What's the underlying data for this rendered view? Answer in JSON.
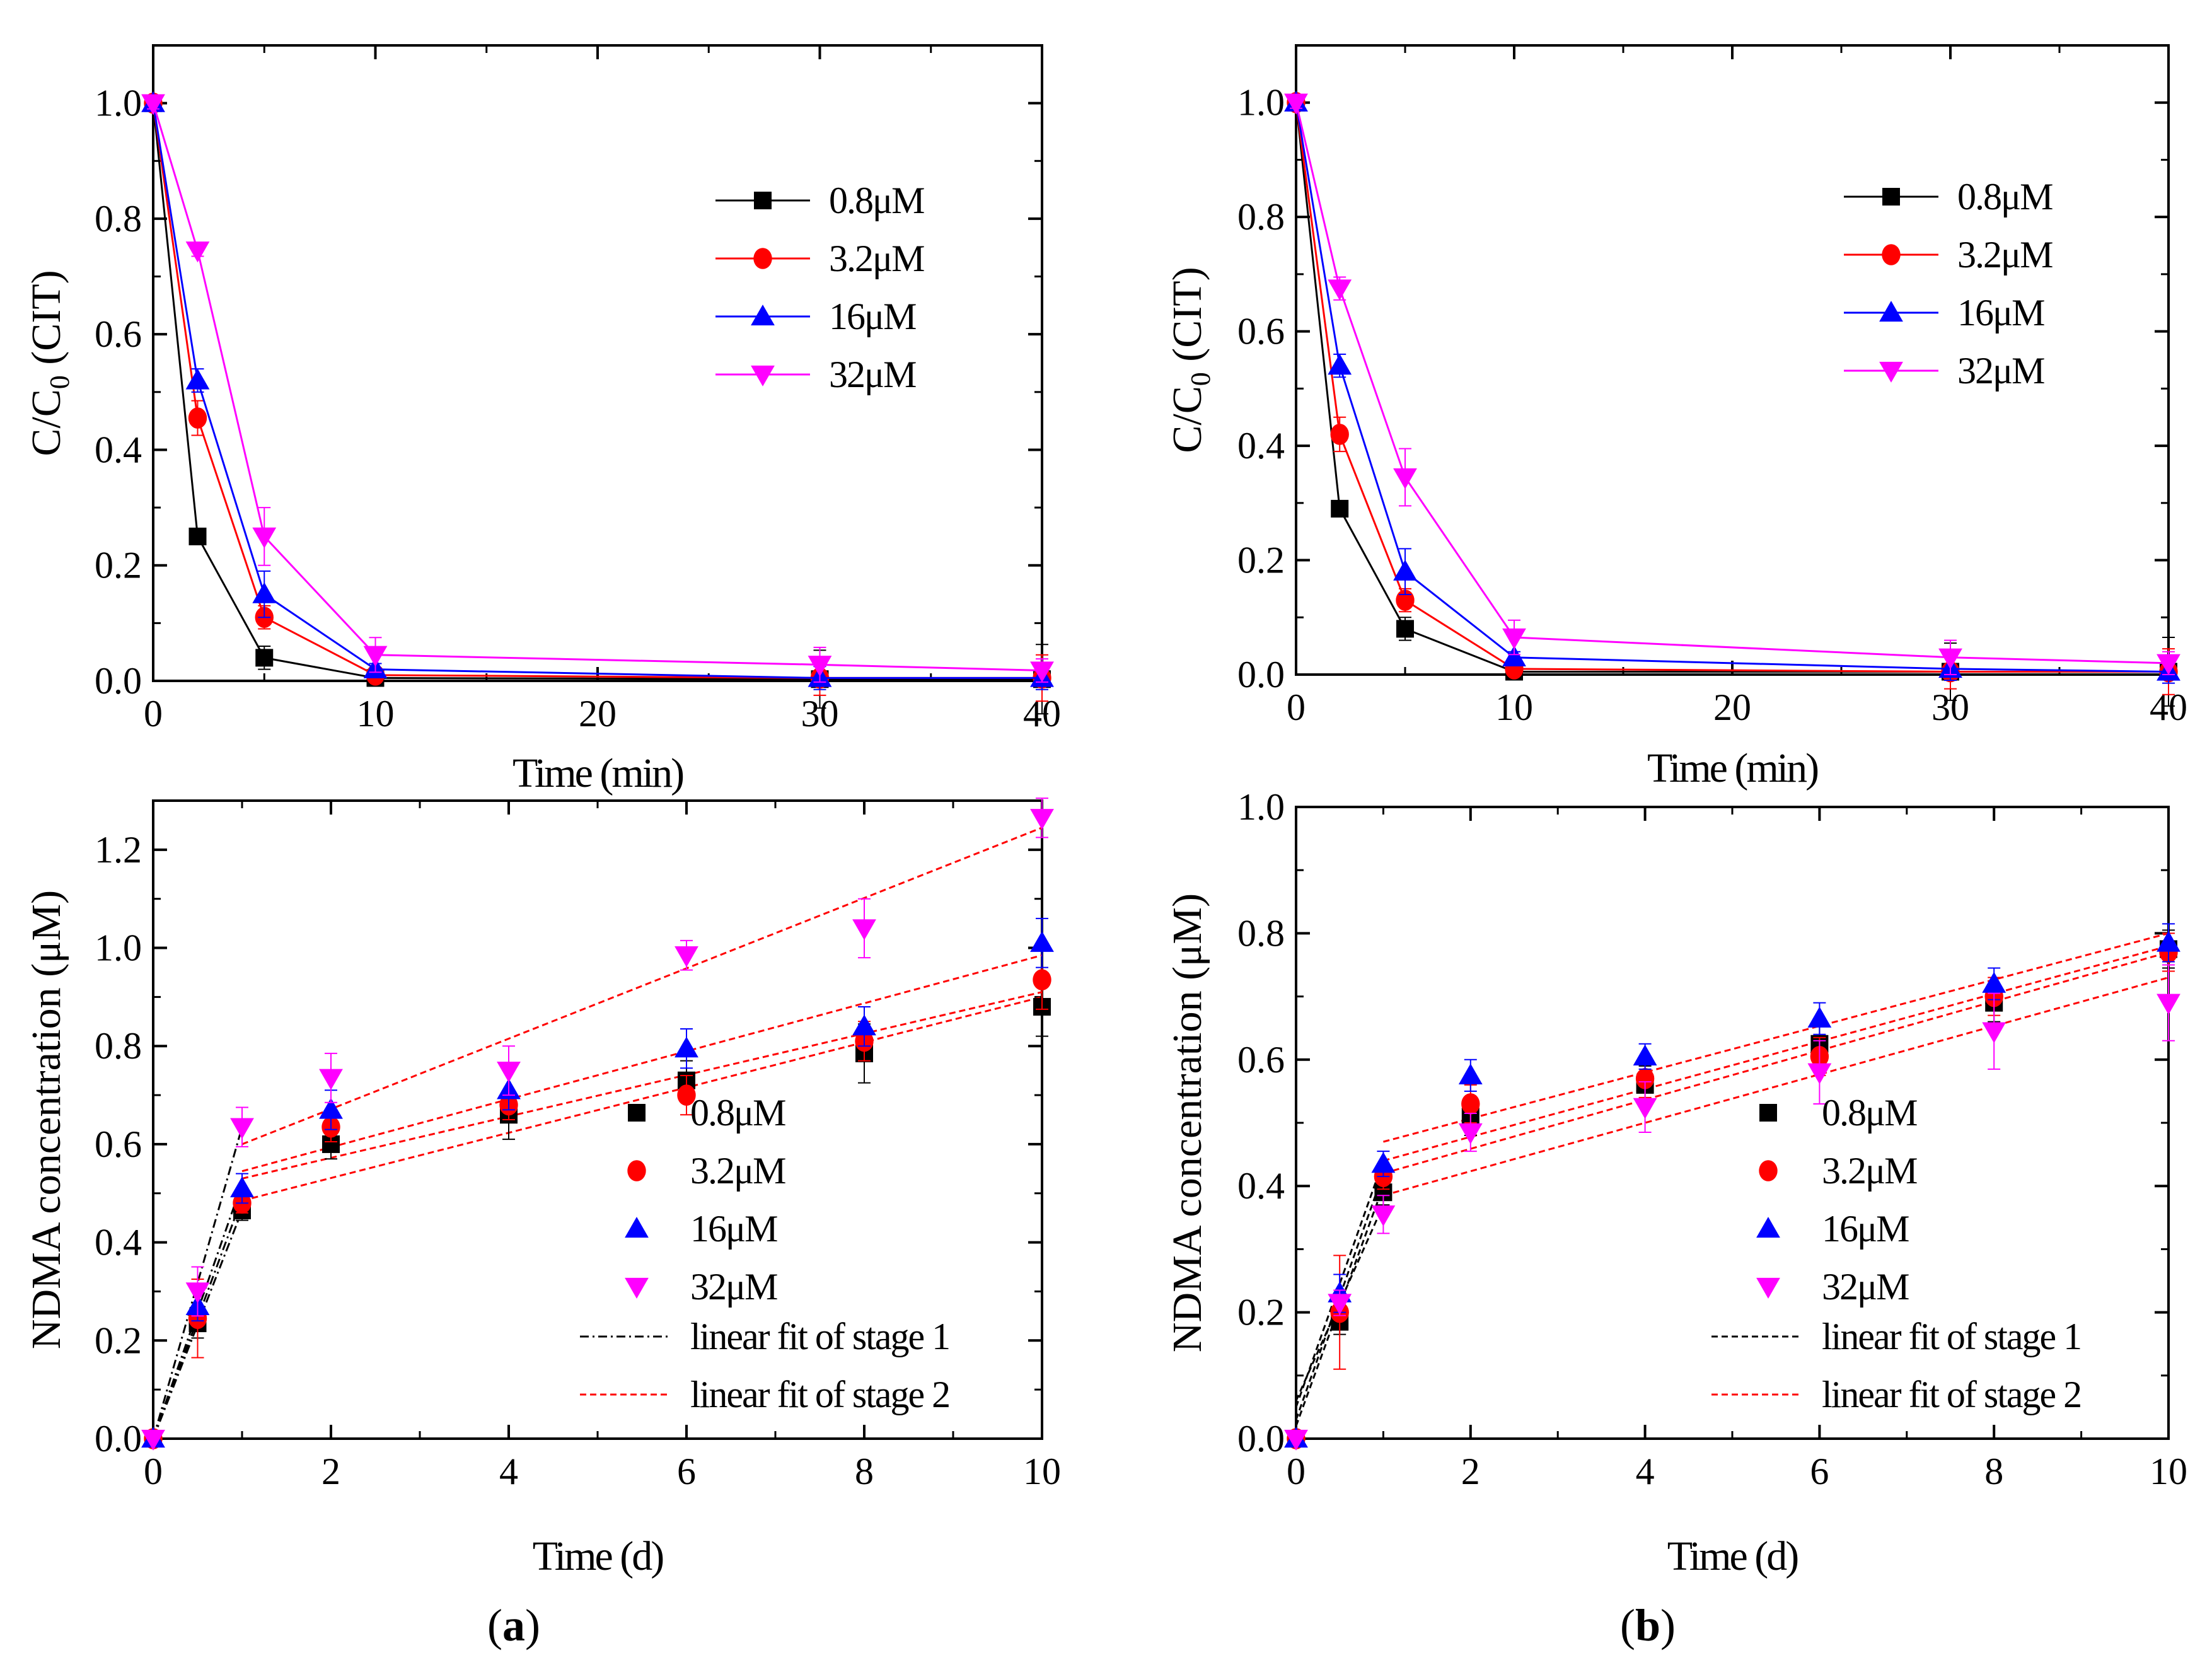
{
  "figure": {
    "panel_labels": [
      {
        "prefix": "(",
        "letter": "a",
        "suffix": ")"
      },
      {
        "prefix": "(",
        "letter": "b",
        "suffix": ")"
      }
    ]
  },
  "series_styles": {
    "0.8μM": {
      "color": "#000000",
      "marker": "square"
    },
    "3.2μM": {
      "color": "#ff0000",
      "marker": "circle"
    },
    "16μM": {
      "color": "#0000ff",
      "marker": "triangle-up"
    },
    "32μM": {
      "color": "#ff00ff",
      "marker": "triangle-down"
    }
  },
  "chart_data": [
    {
      "id": "a-top",
      "type": "line",
      "xlabel": "Time (min)",
      "ylabel_main": "C/C",
      "ylabel_sub": "0",
      "ylabel_tail": " (CIT)",
      "xlim": [
        0,
        40
      ],
      "ylim": [
        0,
        1.1
      ],
      "xticks": [
        0,
        10,
        20,
        30,
        40
      ],
      "xtick_labels": [
        "0",
        "10",
        "20",
        "30",
        "40"
      ],
      "xminor": [
        5,
        15,
        25,
        35
      ],
      "yticks": [
        0,
        0.2,
        0.4,
        0.6,
        0.8,
        1.0
      ],
      "ytick_labels": [
        "0.0",
        "0.2",
        "0.4",
        "0.6",
        "0.8",
        "1.0"
      ],
      "yminor": [
        0.1,
        0.3,
        0.5,
        0.7,
        0.9
      ],
      "x": [
        0,
        2,
        5,
        10,
        30,
        40
      ],
      "series": [
        {
          "name": "0.8μM",
          "values": [
            1.0,
            0.25,
            0.04,
            0.005,
            0.003,
            0.003
          ],
          "errors": [
            0.01,
            0.01,
            0.02,
            0.005,
            0.05,
            0.06
          ]
        },
        {
          "name": "3.2μM",
          "values": [
            1.0,
            0.455,
            0.11,
            0.01,
            0.005,
            0.005
          ],
          "errors": [
            0.01,
            0.03,
            0.02,
            0.01,
            0.03,
            0.04
          ]
        },
        {
          "name": "16μM",
          "values": [
            1.0,
            0.52,
            0.15,
            0.02,
            0.005,
            0.005
          ],
          "errors": [
            0.01,
            0.02,
            0.04,
            0.01,
            0.02,
            0.02
          ]
        },
        {
          "name": "32μM",
          "values": [
            1.0,
            0.745,
            0.25,
            0.045,
            0.028,
            0.018
          ],
          "errors": [
            0.01,
            0.01,
            0.05,
            0.03,
            0.03,
            0.02
          ]
        }
      ],
      "legend": {
        "placement": "top-right",
        "entries": [
          "0.8μM",
          "3.2μM",
          "16μM",
          "32μM"
        ]
      }
    },
    {
      "id": "b-top",
      "type": "line",
      "xlabel": "Time (min)",
      "ylabel_main": "C/C",
      "ylabel_sub": "0",
      "ylabel_tail": " (CIT)",
      "xlim": [
        0,
        40
      ],
      "ylim": [
        0,
        1.1
      ],
      "xticks": [
        0,
        10,
        20,
        30,
        40
      ],
      "xtick_labels": [
        "0",
        "10",
        "20",
        "30",
        "40"
      ],
      "xminor": [
        5,
        15,
        25,
        35
      ],
      "yticks": [
        0,
        0.2,
        0.4,
        0.6,
        0.8,
        1.0
      ],
      "ytick_labels": [
        "0.0",
        "0.2",
        "0.4",
        "0.6",
        "0.8",
        "1.0"
      ],
      "yminor": [
        0.1,
        0.3,
        0.5,
        0.7,
        0.9
      ],
      "x": [
        0,
        2,
        5,
        10,
        30,
        40
      ],
      "series": [
        {
          "name": "0.8μM",
          "values": [
            1.0,
            0.29,
            0.08,
            0.005,
            0.005,
            0.005
          ],
          "errors": [
            0.01,
            0.01,
            0.02,
            0.005,
            0.05,
            0.06
          ]
        },
        {
          "name": "3.2μM",
          "values": [
            1.0,
            0.42,
            0.13,
            0.01,
            0.005,
            0.005
          ],
          "errors": [
            0.01,
            0.03,
            0.02,
            0.01,
            0.03,
            0.04
          ]
        },
        {
          "name": "16μM",
          "values": [
            1.0,
            0.54,
            0.18,
            0.03,
            0.01,
            0.005
          ],
          "errors": [
            0.01,
            0.02,
            0.04,
            0.01,
            0.02,
            0.02
          ]
        },
        {
          "name": "32μM",
          "values": [
            1.0,
            0.675,
            0.345,
            0.065,
            0.03,
            0.02
          ],
          "errors": [
            0.01,
            0.02,
            0.05,
            0.03,
            0.03,
            0.02
          ]
        }
      ],
      "legend": {
        "placement": "top-right",
        "entries": [
          "0.8μM",
          "3.2μM",
          "16μM",
          "32μM"
        ]
      }
    },
    {
      "id": "a-bottom",
      "type": "scatter",
      "xlabel": "Time (d)",
      "ylabel": "NDMA  concentration (μM)",
      "xlim": [
        0,
        10
      ],
      "ylim": [
        0,
        1.3
      ],
      "xticks": [
        0,
        2,
        4,
        6,
        8,
        10
      ],
      "xtick_labels": [
        "0",
        "2",
        "4",
        "6",
        "8",
        "10"
      ],
      "xminor": [
        1,
        3,
        5,
        7,
        9
      ],
      "yticks": [
        0,
        0.2,
        0.4,
        0.6,
        0.8,
        1.0,
        1.2
      ],
      "ytick_labels": [
        "0.0",
        "0.2",
        "0.4",
        "0.6",
        "0.8",
        "1.0",
        "1.2"
      ],
      "yminor": [
        0.1,
        0.3,
        0.5,
        0.7,
        0.9,
        1.1
      ],
      "x": [
        0,
        0.5,
        1,
        2,
        4,
        6,
        8,
        10
      ],
      "series": [
        {
          "name": "0.8μM",
          "values": [
            0.0,
            0.235,
            0.465,
            0.6,
            0.66,
            0.73,
            0.785,
            0.88
          ],
          "errors": [
            0,
            0.03,
            0.02,
            0.03,
            0.05,
            0.04,
            0.06,
            0.06
          ]
        },
        {
          "name": "3.2μM",
          "values": [
            0.0,
            0.245,
            0.48,
            0.635,
            0.68,
            0.7,
            0.81,
            0.935
          ],
          "errors": [
            0,
            0.08,
            0.02,
            0.03,
            0.03,
            0.04,
            0.04,
            0.06
          ]
        },
        {
          "name": "16μM",
          "values": [
            0.0,
            0.27,
            0.51,
            0.67,
            0.71,
            0.795,
            0.84,
            1.01
          ],
          "errors": [
            0,
            0.03,
            0.03,
            0.04,
            0.04,
            0.04,
            0.04,
            0.05
          ]
        },
        {
          "name": "32μM",
          "values": [
            0.0,
            0.3,
            0.635,
            0.735,
            0.75,
            0.985,
            1.04,
            1.265
          ],
          "errors": [
            0,
            0.05,
            0.04,
            0.05,
            0.05,
            0.03,
            0.06,
            0.04
          ]
        }
      ],
      "fits_stage1": [
        {
          "x": [
            0,
            1
          ],
          "y": [
            0.0,
            0.465
          ]
        },
        {
          "x": [
            0,
            1
          ],
          "y": [
            0.0,
            0.49
          ]
        },
        {
          "x": [
            0,
            1
          ],
          "y": [
            0.0,
            0.52
          ]
        },
        {
          "x": [
            0,
            1
          ],
          "y": [
            0.0,
            0.635
          ]
        }
      ],
      "fits_stage2": [
        {
          "x": [
            1,
            10
          ],
          "y": [
            0.485,
            0.9
          ]
        },
        {
          "x": [
            1,
            10
          ],
          "y": [
            0.53,
            0.91
          ]
        },
        {
          "x": [
            1,
            10
          ],
          "y": [
            0.545,
            0.985
          ]
        },
        {
          "x": [
            1,
            10
          ],
          "y": [
            0.6,
            1.245
          ]
        }
      ],
      "legend": {
        "placement": "bottom-right",
        "entries": [
          "0.8μM",
          "3.2μM",
          "16μM",
          "32μM"
        ],
        "fit_labels": [
          "linear fit of stage 1",
          "linear fit of stage 2"
        ]
      }
    },
    {
      "id": "b-bottom",
      "type": "scatter",
      "xlabel": "Time (d)",
      "ylabel": "NDMA  concentration (μM)",
      "xlim": [
        0,
        10
      ],
      "ylim": [
        0,
        1.0
      ],
      "xticks": [
        0,
        2,
        4,
        6,
        8,
        10
      ],
      "xtick_labels": [
        "0",
        "2",
        "4",
        "6",
        "8",
        "10"
      ],
      "xminor": [
        1,
        3,
        5,
        7,
        9
      ],
      "yticks": [
        0,
        0.2,
        0.4,
        0.6,
        0.8,
        1.0
      ],
      "ytick_labels": [
        "0.0",
        "0.2",
        "0.4",
        "0.6",
        "0.8",
        "1.0"
      ],
      "yminor": [
        0.1,
        0.3,
        0.5,
        0.7,
        0.9
      ],
      "x": [
        0,
        0.5,
        1,
        2,
        4,
        6,
        8,
        10
      ],
      "series": [
        {
          "name": "0.8μM",
          "values": [
            0.0,
            0.185,
            0.39,
            0.51,
            0.56,
            0.625,
            0.69,
            0.775
          ],
          "errors": [
            0,
            0.02,
            0.02,
            0.03,
            0.03,
            0.03,
            0.03,
            0.03
          ]
        },
        {
          "name": "3.2μM",
          "values": [
            0.0,
            0.2,
            0.415,
            0.53,
            0.57,
            0.605,
            0.7,
            0.77
          ],
          "errors": [
            0,
            0.09,
            0.02,
            0.03,
            0.03,
            0.03,
            0.03,
            0.03
          ]
        },
        {
          "name": "16μM",
          "values": [
            0.0,
            0.23,
            0.435,
            0.575,
            0.605,
            0.665,
            0.72,
            0.785
          ],
          "errors": [
            0,
            0.03,
            0.02,
            0.025,
            0.02,
            0.025,
            0.025,
            0.03
          ]
        },
        {
          "name": "32μM",
          "values": [
            0.0,
            0.215,
            0.355,
            0.485,
            0.525,
            0.58,
            0.645,
            0.69
          ],
          "errors": [
            0,
            0.02,
            0.03,
            0.03,
            0.04,
            0.05,
            0.06,
            0.06
          ]
        }
      ],
      "fits_stage1": [
        {
          "x": [
            0,
            1
          ],
          "y": [
            0.02,
            0.4
          ]
        },
        {
          "x": [
            0,
            1
          ],
          "y": [
            0.03,
            0.42
          ]
        },
        {
          "x": [
            0,
            1
          ],
          "y": [
            0.05,
            0.44
          ]
        },
        {
          "x": [
            0,
            1
          ],
          "y": [
            0.06,
            0.37
          ]
        }
      ],
      "fits_stage2": [
        {
          "x": [
            1,
            10
          ],
          "y": [
            0.385,
            0.73
          ]
        },
        {
          "x": [
            1,
            10
          ],
          "y": [
            0.42,
            0.77
          ]
        },
        {
          "x": [
            1,
            10
          ],
          "y": [
            0.44,
            0.78
          ]
        },
        {
          "x": [
            1,
            10
          ],
          "y": [
            0.47,
            0.8
          ]
        }
      ],
      "legend": {
        "placement": "bottom-right",
        "entries": [
          "0.8μM",
          "3.2μM",
          "16μM",
          "32μM"
        ],
        "fit_labels": [
          "linear fit of stage 1",
          "linear fit of stage 2"
        ]
      }
    }
  ]
}
